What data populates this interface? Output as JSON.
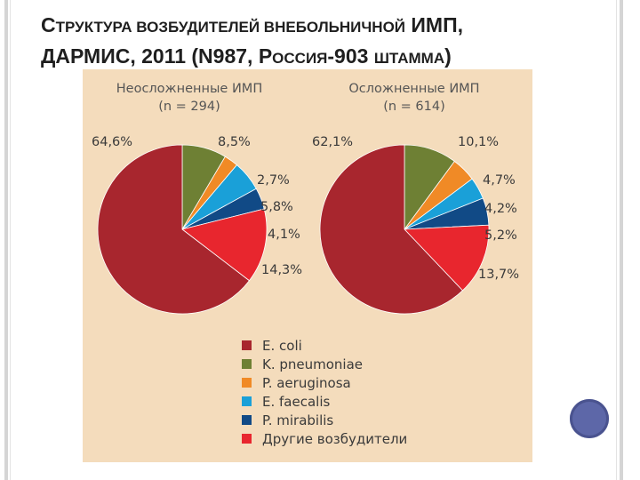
{
  "slide": {
    "title_line1": {
      "c1": "С",
      "c1_rest": "ТРУКТУРА ВОЗБУДИТЕЛЕЙ ВНЕБОЛЬНИЧНОЙ",
      "c2": " ИМП,"
    },
    "title_line2": {
      "c1": "ДАРМИС, 2011 (N987, Р",
      "c1_rest": "ОССИЯ",
      "c2": "-903 ",
      "c2_rest": "ШТАММА",
      "c3": ")"
    }
  },
  "colors": {
    "panel_bg": "#f4dcbc",
    "E. coli": "#a8262e",
    "K. pneumoniae": "#6e8034",
    "P. aeruginosa": "#f08a26",
    "E. faecalis": "#1aa0d8",
    "P. mirabilis": "#114a86",
    "Другие возбудители": "#e8262e"
  },
  "legend": [
    "E. coli",
    "K. pneumoniae",
    "P. aeruginosa",
    "E. faecalis",
    "P. mirabilis",
    "Другие возбудители"
  ],
  "chart_data": [
    {
      "type": "pie",
      "title": "Неосложненные ИМП",
      "subtitle": "(n = 294)",
      "categories": [
        "E. coli",
        "K. pneumoniae",
        "P. aeruginosa",
        "E. faecalis",
        "P. mirabilis",
        "Другие возбудители"
      ],
      "values": [
        64.6,
        8.5,
        2.7,
        5.8,
        4.1,
        14.3
      ],
      "labels": [
        "64,6%",
        "8,5%",
        "2,7%",
        "5,8%",
        "4,1%",
        "14,3%"
      ],
      "legend_position": "bottom"
    },
    {
      "type": "pie",
      "title": "Осложненные ИМП",
      "subtitle": "(n = 614)",
      "categories": [
        "E. coli",
        "K. pneumoniae",
        "P. aeruginosa",
        "E. faecalis",
        "P. mirabilis",
        "Другие возбудители"
      ],
      "values": [
        62.1,
        10.1,
        4.7,
        4.2,
        5.2,
        13.7
      ],
      "labels": [
        "62,1%",
        "10,1%",
        "4,7%",
        "4,2%",
        "5,2%",
        "13,7%"
      ],
      "legend_position": "bottom"
    }
  ]
}
